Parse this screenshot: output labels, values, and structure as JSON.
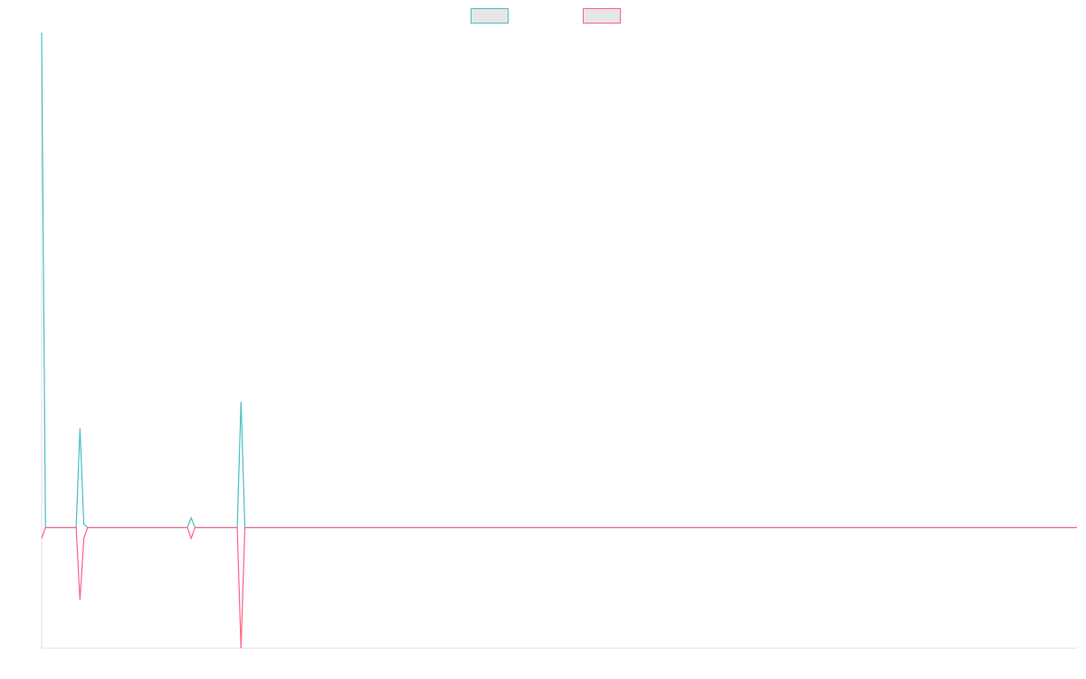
{
  "chart_data": {
    "type": "line",
    "x": [
      0,
      1,
      9,
      10,
      11,
      12,
      38,
      39,
      40,
      51,
      52,
      53,
      270
    ],
    "series": [
      {
        "color": "#4bc0c0",
        "values": [
          4.1,
          0,
          0,
          0.82,
          0.03,
          0,
          0,
          0.08,
          0,
          0,
          1.04,
          0,
          0
        ]
      },
      {
        "color": "#ff6384",
        "values": [
          -0.09,
          0,
          0,
          -0.6,
          -0.09,
          0,
          0,
          -0.09,
          0,
          0,
          -1,
          0,
          0
        ]
      }
    ],
    "xlim": [
      0,
      270
    ],
    "ylim": [
      -1,
      4.1
    ],
    "legend": "top"
  }
}
